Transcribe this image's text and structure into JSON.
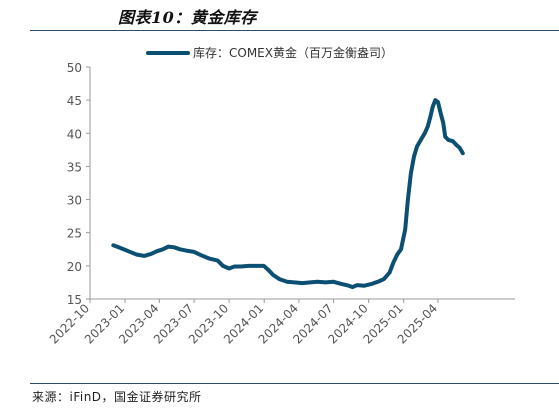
{
  "header": {
    "title": "图表10：黄金库存"
  },
  "footer": {
    "source": "来源：iFinD，国金证券研究所"
  },
  "colors": {
    "series": "#0b4f73",
    "axis": "#999999",
    "rule": "#2d4e6a"
  },
  "chart_data": {
    "type": "line",
    "title": "图表10：黄金库存",
    "xlabel": "",
    "ylabel": "",
    "ylim": [
      15,
      50
    ],
    "yticks": [
      15,
      20,
      25,
      30,
      35,
      40,
      45,
      50
    ],
    "xticks": [
      "2022-10",
      "2023-01",
      "2023-04",
      "2023-07",
      "2023-10",
      "2024-01",
      "2024-04",
      "2024-07",
      "2024-10",
      "2025-01",
      "2025-04"
    ],
    "grid": false,
    "legend": "top",
    "series": [
      {
        "name": "库存：COMEX黄金（百万金衡盎司）",
        "points": [
          [
            "2022-12-01",
            23.1
          ],
          [
            "2022-12-20",
            22.7
          ],
          [
            "2023-01-10",
            22.2
          ],
          [
            "2023-02-01",
            21.7
          ],
          [
            "2023-02-20",
            21.5
          ],
          [
            "2023-03-10",
            21.8
          ],
          [
            "2023-03-25",
            22.2
          ],
          [
            "2023-04-10",
            22.5
          ],
          [
            "2023-04-25",
            22.9
          ],
          [
            "2023-05-10",
            22.8
          ],
          [
            "2023-05-25",
            22.5
          ],
          [
            "2023-06-10",
            22.3
          ],
          [
            "2023-07-01",
            22.1
          ],
          [
            "2023-07-20",
            21.6
          ],
          [
            "2023-08-10",
            21.1
          ],
          [
            "2023-09-01",
            20.8
          ],
          [
            "2023-09-15",
            20.0
          ],
          [
            "2023-10-01",
            19.6
          ],
          [
            "2023-10-15",
            19.9
          ],
          [
            "2023-11-01",
            19.9
          ],
          [
            "2023-11-20",
            20.0
          ],
          [
            "2023-12-10",
            20.0
          ],
          [
            "2023-12-31",
            20.0
          ],
          [
            "2024-01-10",
            19.5
          ],
          [
            "2024-01-25",
            18.6
          ],
          [
            "2024-02-10",
            18.0
          ],
          [
            "2024-03-01",
            17.6
          ],
          [
            "2024-03-20",
            17.5
          ],
          [
            "2024-04-10",
            17.4
          ],
          [
            "2024-05-01",
            17.5
          ],
          [
            "2024-05-20",
            17.6
          ],
          [
            "2024-06-10",
            17.5
          ],
          [
            "2024-07-01",
            17.6
          ],
          [
            "2024-07-20",
            17.3
          ],
          [
            "2024-08-10",
            17.0
          ],
          [
            "2024-08-20",
            16.8
          ],
          [
            "2024-09-01",
            17.1
          ],
          [
            "2024-09-20",
            17.0
          ],
          [
            "2024-10-10",
            17.3
          ],
          [
            "2024-10-25",
            17.6
          ],
          [
            "2024-11-10",
            18.0
          ],
          [
            "2024-11-25",
            19.0
          ],
          [
            "2024-12-05",
            20.5
          ],
          [
            "2024-12-15",
            21.7
          ],
          [
            "2024-12-25",
            22.5
          ],
          [
            "2025-01-05",
            25.5
          ],
          [
            "2025-01-12",
            30.0
          ],
          [
            "2025-01-20",
            34.0
          ],
          [
            "2025-01-28",
            36.5
          ],
          [
            "2025-02-05",
            38.0
          ],
          [
            "2025-02-15",
            39.0
          ],
          [
            "2025-02-25",
            40.0
          ],
          [
            "2025-03-05",
            41.0
          ],
          [
            "2025-03-12",
            42.5
          ],
          [
            "2025-03-18",
            44.0
          ],
          [
            "2025-03-25",
            45.0
          ],
          [
            "2025-04-01",
            44.7
          ],
          [
            "2025-04-08",
            43.0
          ],
          [
            "2025-04-15",
            41.5
          ],
          [
            "2025-04-20",
            39.5
          ],
          [
            "2025-04-28",
            39.0
          ],
          [
            "2025-05-10",
            38.8
          ],
          [
            "2025-05-20",
            38.2
          ],
          [
            "2025-05-28",
            37.8
          ],
          [
            "2025-06-05",
            37.0
          ]
        ]
      }
    ]
  }
}
